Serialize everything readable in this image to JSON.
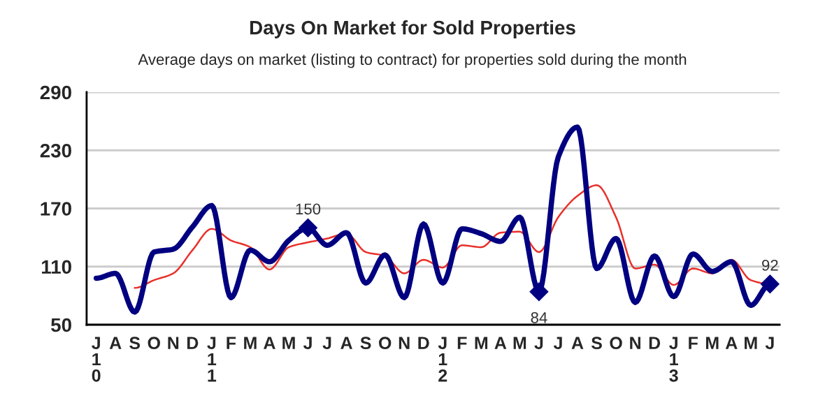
{
  "chart_data": {
    "type": "line",
    "title": "Days On Market for Sold Properties",
    "subtitle": "Average days on market (listing to contract) for properties sold during the month",
    "categories": [
      "J\n1\n0",
      "A",
      "S",
      "O",
      "N",
      "D",
      "J\n1\n1",
      "F",
      "M",
      "A",
      "M",
      "J",
      "J",
      "A",
      "S",
      "O",
      "N",
      "D",
      "J\n1\n2",
      "F",
      "M",
      "A",
      "M",
      "J",
      "J",
      "A",
      "S",
      "O",
      "N",
      "D",
      "J\n1\n3",
      "F",
      "M",
      "A",
      "M",
      "J"
    ],
    "series": [
      {
        "color": "#000080",
        "values": [
          98,
          103,
          63,
          125,
          128,
          151,
          173,
          78,
          127,
          115,
          137,
          150,
          132,
          145,
          93,
          122,
          78,
          154,
          93,
          149,
          144,
          136,
          161,
          84,
          223,
          254,
          108,
          139,
          73,
          121,
          79,
          123,
          105,
          115,
          70,
          92
        ],
        "value_labels": [
          null,
          null,
          null,
          null,
          null,
          null,
          null,
          null,
          null,
          null,
          null,
          "150",
          null,
          null,
          null,
          null,
          null,
          null,
          null,
          null,
          null,
          null,
          null,
          "84",
          null,
          null,
          null,
          null,
          null,
          null,
          null,
          null,
          null,
          null,
          null,
          "92"
        ]
      },
      {
        "color": "#e8302a",
        "values": [
          null,
          null,
          88,
          96,
          103,
          127,
          149,
          137,
          130,
          107,
          130,
          135,
          139,
          144,
          125,
          121,
          103,
          117,
          109,
          132,
          130,
          145,
          146,
          125,
          161,
          183,
          194,
          161,
          108,
          112,
          91,
          108,
          103,
          117,
          96,
          92
        ]
      }
    ],
    "ylim": [
      50,
      290
    ],
    "yticks": [
      50,
      110,
      170,
      230,
      290
    ],
    "grid": "y",
    "legend": false,
    "line_style": "solid"
  }
}
